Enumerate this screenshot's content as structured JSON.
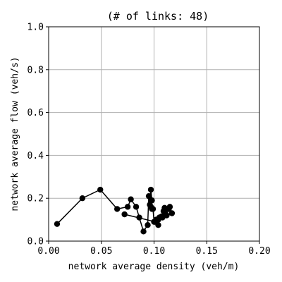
{
  "chart_data": {
    "type": "line",
    "title": "(# of links: 48)",
    "xlabel": "network average density (veh/m)",
    "ylabel": "network average flow (veh/s)",
    "xlim": [
      0.0,
      0.2
    ],
    "ylim": [
      0.0,
      1.0
    ],
    "xticks": [
      0.0,
      0.05,
      0.1,
      0.15,
      0.2
    ],
    "xtick_labels": [
      "0.00",
      "0.05",
      "0.10",
      "0.15",
      "0.20"
    ],
    "yticks": [
      0.0,
      0.2,
      0.4,
      0.6,
      0.8,
      1.0
    ],
    "ytick_labels": [
      "0.0",
      "0.2",
      "0.4",
      "0.6",
      "0.8",
      "1.0"
    ],
    "grid": true,
    "colors": {
      "series": "#000000",
      "grid": "#b0b0b0"
    },
    "series": [
      {
        "marker": "circle",
        "x": [
          0.008,
          0.032,
          0.049,
          0.065,
          0.075,
          0.078,
          0.083,
          0.086,
          0.09,
          0.094,
          0.095,
          0.096,
          0.097,
          0.098,
          0.097,
          0.098,
          0.099,
          0.1,
          0.102,
          0.104,
          0.105,
          0.107,
          0.109,
          0.11,
          0.112,
          0.115,
          0.117,
          0.114,
          0.112,
          0.11,
          0.108,
          0.104,
          0.101,
          0.072
        ],
        "y": [
          0.08,
          0.2,
          0.24,
          0.15,
          0.16,
          0.195,
          0.16,
          0.11,
          0.045,
          0.075,
          0.21,
          0.17,
          0.24,
          0.19,
          0.16,
          0.15,
          0.15,
          0.09,
          0.1,
          0.075,
          0.11,
          0.115,
          0.14,
          0.155,
          0.15,
          0.16,
          0.13,
          0.15,
          0.12,
          0.13,
          0.11,
          0.1,
          0.09,
          0.125
        ]
      }
    ]
  }
}
